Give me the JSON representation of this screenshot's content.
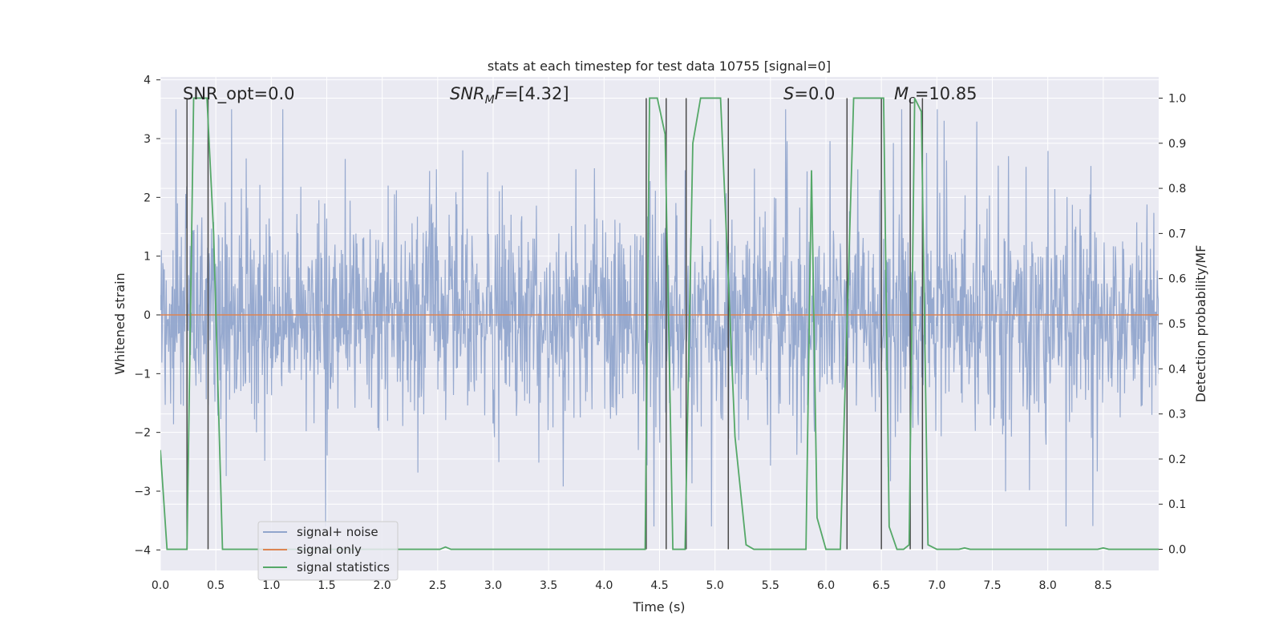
{
  "chart_data": {
    "type": "line",
    "title": "stats at each timestep for test data 10755 [signal=0]",
    "xlabel": "Time (s)",
    "ylabel": "Whitened strain",
    "y2label": "Detection probability/MF",
    "xlim": [
      0.0,
      9.0
    ],
    "ylim": [
      -4.35,
      4.05
    ],
    "y2lim": [
      -0.047,
      1.047
    ],
    "xticks": [
      0.0,
      0.5,
      1.0,
      1.5,
      2.0,
      2.5,
      3.0,
      3.5,
      4.0,
      4.5,
      5.0,
      5.5,
      6.0,
      6.5,
      7.0,
      7.5,
      8.0,
      8.5
    ],
    "xtick_labels": [
      "0.0",
      "0.5",
      "1.0",
      "1.5",
      "2.0",
      "2.5",
      "3.0",
      "3.5",
      "4.0",
      "4.5",
      "5.0",
      "5.5",
      "6.0",
      "6.5",
      "7.0",
      "7.5",
      "8.0",
      "8.5"
    ],
    "yticks": [
      4,
      3,
      2,
      1,
      0,
      -1,
      -2,
      -3,
      -4
    ],
    "ytick_labels": [
      "4",
      "3",
      "2",
      "1",
      "0",
      "−1",
      "−2",
      "−3",
      "−4"
    ],
    "y2ticks": [
      1.0,
      0.9,
      0.8,
      0.7,
      0.6,
      0.5,
      0.4,
      0.3,
      0.2,
      0.1,
      0.0
    ],
    "y2tick_labels": [
      "1.0",
      "0.9",
      "0.8",
      "0.7",
      "0.6",
      "0.5",
      "0.4",
      "0.3",
      "0.2",
      "0.1",
      "0.0"
    ],
    "annotations": {
      "snr_opt": "SNR_opt=0.0",
      "snr_mf": "SNR_MF=[4.32]",
      "snr_mf_prefix": "SNR",
      "snr_mf_sub": "M",
      "snr_mf_mid": "F",
      "snr_mf_suffix": "=[4.32]",
      "s_var": "S",
      "s_value": "=0.0",
      "mc_var": "M",
      "mc_sub": "c",
      "mc_value": "=10.85"
    },
    "legend": {
      "placement": "lower-left",
      "entries": [
        {
          "label": "signal+ noise",
          "color": "#91a5cc"
        },
        {
          "label": "signal only",
          "color": "#dd8452"
        },
        {
          "label": "signal statistics",
          "color": "#55a868"
        }
      ]
    },
    "series": [
      {
        "name": "signal+ noise",
        "axis": "left",
        "color": "#91a5cc",
        "description": "dense whitened strain noise, approx. within [-3.6, 3.5]",
        "amplitude_core": 1.35,
        "amplitude_peak": 3.5,
        "samples": 2048,
        "seed": 10755
      },
      {
        "name": "signal only",
        "axis": "left",
        "color": "#dd8452",
        "x": [
          0.0,
          9.0
        ],
        "y": [
          0.0,
          0.0
        ]
      },
      {
        "name": "signal statistics",
        "axis": "right",
        "color": "#55a868",
        "x": [
          0.0,
          0.06,
          0.24,
          0.3,
          0.42,
          0.48,
          0.56,
          2.52,
          2.57,
          2.62,
          4.37,
          4.41,
          4.48,
          4.55,
          4.62,
          4.73,
          4.8,
          4.87,
          4.95,
          5.05,
          5.12,
          5.18,
          5.28,
          5.35,
          5.82,
          5.87,
          5.92,
          6.0,
          6.13,
          6.25,
          6.52,
          6.57,
          6.64,
          6.7,
          6.75,
          6.8,
          6.86,
          6.92,
          7.0,
          7.2,
          7.25,
          7.3,
          8.45,
          8.5,
          8.55,
          9.0
        ],
        "y": [
          0.22,
          0.0,
          0.0,
          1.0,
          1.0,
          0.7,
          0.0,
          0.0,
          0.005,
          0.0,
          0.0,
          1.0,
          1.0,
          0.92,
          0.0,
          0.0,
          0.9,
          1.0,
          1.0,
          1.0,
          0.6,
          0.25,
          0.01,
          0.0,
          0.0,
          0.84,
          0.07,
          0.0,
          0.0,
          1.0,
          1.0,
          0.05,
          0.0,
          0.0,
          0.01,
          1.0,
          0.97,
          0.01,
          0.0,
          0.0,
          0.003,
          0.0,
          0.0,
          0.003,
          0.0,
          0.0
        ]
      }
    ],
    "markers": {
      "color": "#4a4a4a",
      "axis": "right",
      "x": [
        0.24,
        0.43,
        4.38,
        4.56,
        4.74,
        5.12,
        6.19,
        6.5,
        6.76,
        6.87
      ],
      "top": 1.0,
      "bottom": 0.0
    },
    "colors": {
      "plot_background": "#eaeaf2",
      "grid": "#ffffff",
      "text": "#262626"
    }
  }
}
